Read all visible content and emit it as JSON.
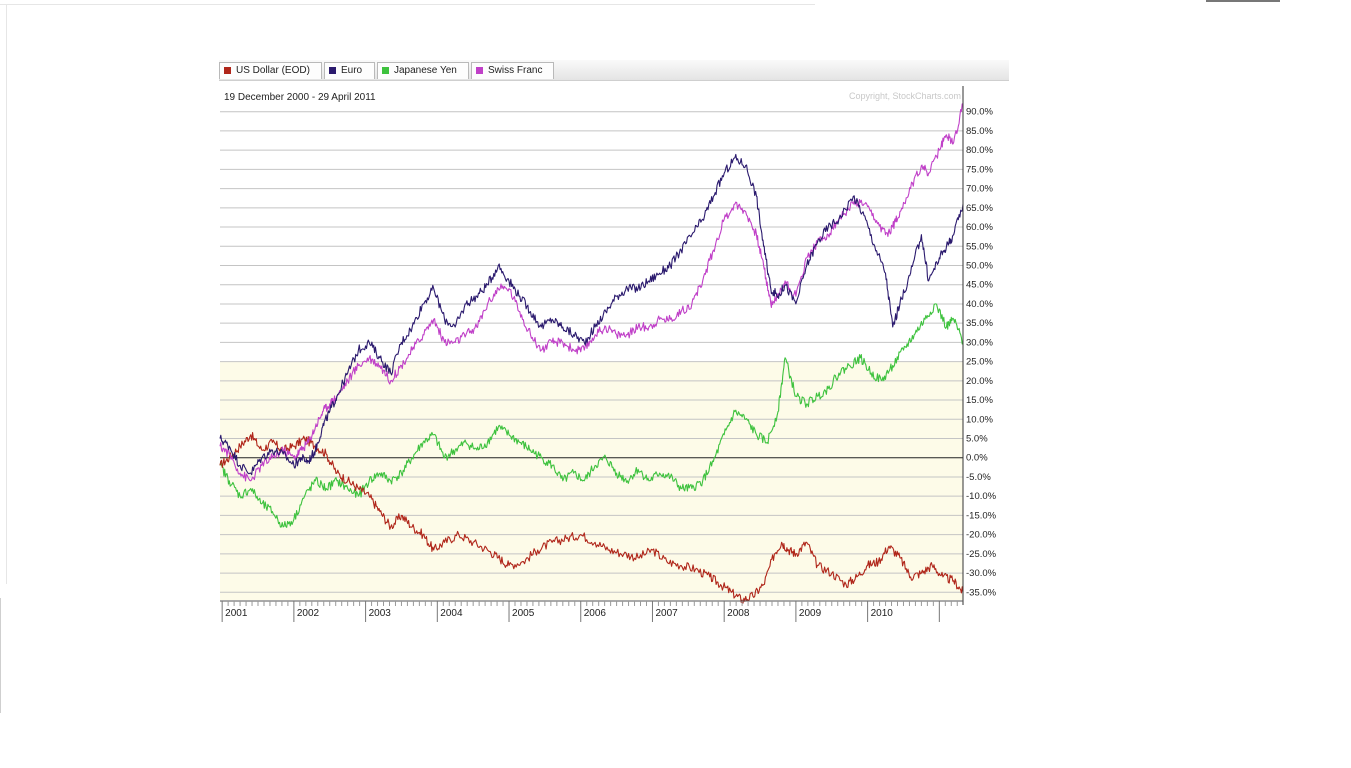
{
  "chart_data": {
    "type": "line",
    "title": "19 December 2000 - 29 April 2011",
    "watermark": "Copyright, StockCharts.com",
    "xlabel": "",
    "ylabel": "",
    "x_ticks": [
      "2001",
      "2002",
      "2003",
      "2004",
      "2005",
      "2006",
      "2007",
      "2008",
      "2009",
      "2010"
    ],
    "xlim": [
      2000.97,
      2011.33
    ],
    "ylim": [
      -37,
      92
    ],
    "y_ticks": [
      90,
      85,
      80,
      75,
      70,
      65,
      60,
      55,
      50,
      45,
      40,
      35,
      30,
      25,
      20,
      15,
      10,
      5,
      0,
      -5,
      -10,
      -15,
      -20,
      -25,
      -30,
      -35
    ],
    "y_tick_labels": [
      "90.0%",
      "85.0%",
      "80.0%",
      "75.0%",
      "70.0%",
      "65.0%",
      "60.0%",
      "55.0%",
      "50.0%",
      "45.0%",
      "40.0%",
      "35.0%",
      "30.0%",
      "25.0%",
      "20.0%",
      "15.0%",
      "10.0%",
      "5.0%",
      "0.0%",
      "-5.0%",
      "-10.0%",
      "-15.0%",
      "-20.0%",
      "-25.0%",
      "-30.0%",
      "-35.0%"
    ],
    "grid": true,
    "legend_position": "top-left",
    "background_band": {
      "from": -37,
      "to": 25,
      "color": "#fdfbe8"
    },
    "series": [
      {
        "name": "US Dollar (EOD)",
        "color": "#b0261a",
        "x": [
          2000.97,
          2001.1,
          2001.25,
          2001.4,
          2001.55,
          2001.7,
          2001.85,
          2002.0,
          2002.15,
          2002.3,
          2002.45,
          2002.6,
          2002.75,
          2002.9,
          2003.05,
          2003.2,
          2003.35,
          2003.5,
          2003.65,
          2003.8,
          2003.95,
          2004.1,
          2004.3,
          2004.5,
          2004.7,
          2004.85,
          2005.0,
          2005.2,
          2005.4,
          2005.6,
          2005.8,
          2006.0,
          2006.2,
          2006.4,
          2006.6,
          2006.8,
          2007.0,
          2007.2,
          2007.4,
          2007.6,
          2007.8,
          2007.95,
          2008.1,
          2008.25,
          2008.4,
          2008.55,
          2008.7,
          2008.8,
          2008.9,
          2009.0,
          2009.15,
          2009.3,
          2009.5,
          2009.7,
          2009.85,
          2010.0,
          2010.15,
          2010.3,
          2010.45,
          2010.6,
          2010.75,
          2010.9,
          2011.05,
          2011.2,
          2011.33
        ],
        "y": [
          -2,
          0,
          3,
          6,
          2,
          4,
          2,
          3,
          5,
          3,
          1,
          -4,
          -6,
          -8,
          -10,
          -14,
          -18,
          -15,
          -18,
          -20,
          -24,
          -22,
          -20,
          -22,
          -24,
          -26,
          -28,
          -27,
          -24,
          -22,
          -21,
          -20,
          -22,
          -24,
          -25,
          -26,
          -24,
          -27,
          -28,
          -29,
          -31,
          -33,
          -35,
          -37,
          -36,
          -33,
          -25,
          -22,
          -24,
          -25,
          -22,
          -28,
          -30,
          -33,
          -31,
          -28,
          -27,
          -23,
          -26,
          -31,
          -30,
          -28,
          -31,
          -32,
          -35
        ]
      },
      {
        "name": "Euro",
        "color": "#2b1a6e",
        "x": [
          2000.97,
          2001.1,
          2001.25,
          2001.4,
          2001.55,
          2001.7,
          2001.85,
          2002.0,
          2002.1,
          2002.2,
          2002.3,
          2002.4,
          2002.5,
          2002.6,
          2002.75,
          2002.9,
          2003.05,
          2003.2,
          2003.35,
          2003.5,
          2003.65,
          2003.8,
          2003.95,
          2004.1,
          2004.25,
          2004.4,
          2004.55,
          2004.7,
          2004.85,
          2005.0,
          2005.15,
          2005.3,
          2005.45,
          2005.6,
          2005.75,
          2005.9,
          2006.05,
          2006.2,
          2006.35,
          2006.5,
          2006.65,
          2006.8,
          2006.95,
          2007.1,
          2007.25,
          2007.4,
          2007.55,
          2007.7,
          2007.85,
          2008.0,
          2008.15,
          2008.3,
          2008.45,
          2008.55,
          2008.65,
          2008.75,
          2008.85,
          2009.0,
          2009.15,
          2009.3,
          2009.45,
          2009.6,
          2009.8,
          2009.95,
          2010.1,
          2010.25,
          2010.35,
          2010.45,
          2010.6,
          2010.75,
          2010.85,
          2011.0,
          2011.1,
          2011.2,
          2011.33
        ],
        "y": [
          5,
          3,
          -2,
          -4,
          0,
          2,
          1,
          -2,
          0,
          -1,
          2,
          8,
          12,
          16,
          22,
          28,
          30,
          26,
          22,
          30,
          34,
          40,
          44,
          36,
          34,
          40,
          42,
          45,
          50,
          46,
          42,
          38,
          34,
          36,
          34,
          32,
          30,
          34,
          38,
          42,
          44,
          44,
          46,
          48,
          50,
          54,
          58,
          62,
          68,
          74,
          78,
          76,
          68,
          55,
          44,
          42,
          45,
          40,
          50,
          56,
          60,
          62,
          68,
          63,
          55,
          48,
          34,
          40,
          48,
          58,
          46,
          52,
          55,
          58,
          66
        ]
      },
      {
        "name": "Japanese Yen",
        "color": "#3ec23e",
        "x": [
          2000.97,
          2001.1,
          2001.25,
          2001.4,
          2001.55,
          2001.7,
          2001.85,
          2002.0,
          2002.15,
          2002.3,
          2002.45,
          2002.6,
          2002.75,
          2002.9,
          2003.05,
          2003.2,
          2003.35,
          2003.5,
          2003.65,
          2003.8,
          2003.95,
          2004.1,
          2004.25,
          2004.4,
          2004.55,
          2004.7,
          2004.85,
          2005.0,
          2005.15,
          2005.3,
          2005.45,
          2005.6,
          2005.75,
          2005.9,
          2006.05,
          2006.2,
          2006.35,
          2006.5,
          2006.65,
          2006.8,
          2006.95,
          2007.1,
          2007.25,
          2007.4,
          2007.55,
          2007.7,
          2007.85,
          2008.0,
          2008.15,
          2008.3,
          2008.45,
          2008.6,
          2008.75,
          2008.85,
          2009.0,
          2009.15,
          2009.3,
          2009.45,
          2009.6,
          2009.75,
          2009.9,
          2010.05,
          2010.2,
          2010.35,
          2010.5,
          2010.65,
          2010.8,
          2010.95,
          2011.1,
          2011.2,
          2011.33
        ],
        "y": [
          -2,
          -6,
          -10,
          -8,
          -12,
          -14,
          -18,
          -16,
          -10,
          -6,
          -8,
          -6,
          -8,
          -10,
          -6,
          -4,
          -6,
          -4,
          0,
          4,
          6,
          0,
          2,
          4,
          2,
          4,
          8,
          6,
          4,
          2,
          0,
          -2,
          -6,
          -4,
          -6,
          -2,
          0,
          -4,
          -6,
          -3,
          -6,
          -4,
          -5,
          -8,
          -8,
          -6,
          -1,
          6,
          12,
          10,
          6,
          4,
          12,
          26,
          16,
          14,
          16,
          18,
          22,
          24,
          26,
          22,
          20,
          24,
          28,
          32,
          36,
          40,
          34,
          36,
          30
        ]
      },
      {
        "name": "Swiss Franc",
        "color": "#c040c8",
        "x": [
          2000.97,
          2001.1,
          2001.25,
          2001.4,
          2001.55,
          2001.7,
          2001.85,
          2002.0,
          2002.1,
          2002.2,
          2002.3,
          2002.4,
          2002.5,
          2002.6,
          2002.75,
          2002.9,
          2003.05,
          2003.2,
          2003.35,
          2003.5,
          2003.65,
          2003.8,
          2003.95,
          2004.1,
          2004.25,
          2004.4,
          2004.55,
          2004.7,
          2004.85,
          2005.0,
          2005.15,
          2005.3,
          2005.45,
          2005.6,
          2005.75,
          2005.9,
          2006.05,
          2006.2,
          2006.35,
          2006.5,
          2006.65,
          2006.8,
          2006.95,
          2007.1,
          2007.25,
          2007.4,
          2007.55,
          2007.7,
          2007.85,
          2008.0,
          2008.15,
          2008.3,
          2008.45,
          2008.55,
          2008.65,
          2008.75,
          2008.85,
          2009.0,
          2009.15,
          2009.3,
          2009.45,
          2009.6,
          2009.8,
          2009.95,
          2010.1,
          2010.25,
          2010.35,
          2010.45,
          2010.6,
          2010.75,
          2010.85,
          2011.0,
          2011.1,
          2011.2,
          2011.33
        ],
        "y": [
          3,
          1,
          -4,
          -6,
          -2,
          0,
          2,
          0,
          2,
          4,
          8,
          12,
          14,
          16,
          20,
          24,
          26,
          24,
          20,
          24,
          28,
          32,
          36,
          30,
          30,
          32,
          34,
          40,
          44,
          44,
          38,
          32,
          28,
          30,
          30,
          28,
          28,
          32,
          34,
          32,
          32,
          34,
          34,
          36,
          36,
          38,
          40,
          46,
          54,
          62,
          66,
          64,
          58,
          50,
          40,
          42,
          46,
          42,
          52,
          56,
          58,
          62,
          66,
          66,
          62,
          58,
          60,
          64,
          70,
          76,
          74,
          80,
          84,
          82,
          92
        ]
      }
    ]
  }
}
